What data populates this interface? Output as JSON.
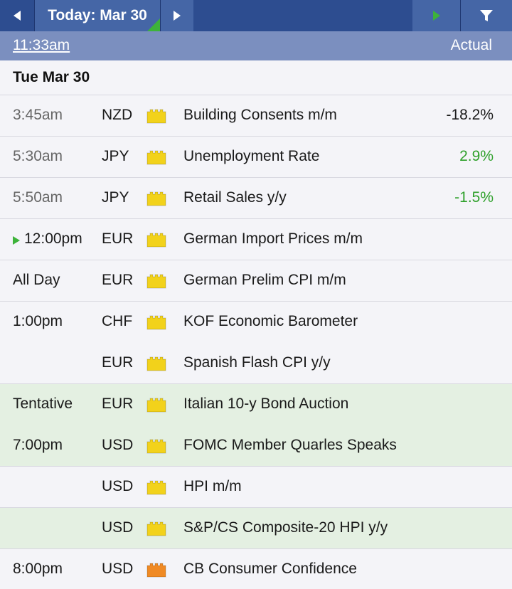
{
  "toolbar": {
    "date_label": "Today: Mar 30",
    "prev_icon": "triangle-left-icon",
    "next_icon": "triangle-right-icon",
    "play_icon": "play-icon",
    "filter_icon": "filter-icon"
  },
  "subheader": {
    "current_time": "11:33am",
    "actual_label": "Actual"
  },
  "day": {
    "label": "Tue Mar 30"
  },
  "colors": {
    "toolbar_bg": "#2d4d90",
    "toolbar_btn": "#4566a6",
    "subheader_bg": "#7b8fbf",
    "impact_low": "#f2d21b",
    "impact_medium": "#f08a24",
    "positive": "#2ea02a",
    "highlight_row": "#e4f0e2",
    "now_marker": "#3db33a"
  },
  "events": [
    {
      "time": "3:45am",
      "currency": "NZD",
      "impact": "low",
      "name": "Building Consents m/m",
      "actual": "-18.2%"
    },
    {
      "time": "5:30am",
      "currency": "JPY",
      "impact": "low",
      "name": "Unemployment Rate",
      "actual": "2.9%"
    },
    {
      "time": "5:50am",
      "currency": "JPY",
      "impact": "low",
      "name": "Retail Sales y/y",
      "actual": "-1.5%"
    },
    {
      "time": "12:00pm",
      "currency": "EUR",
      "impact": "low",
      "name": "German Import Prices m/m",
      "actual": ""
    },
    {
      "time": "All Day",
      "currency": "EUR",
      "impact": "low",
      "name": "German Prelim CPI m/m",
      "actual": ""
    },
    {
      "time": "1:00pm",
      "currency": "CHF",
      "impact": "low",
      "name": "KOF Economic Barometer",
      "actual": ""
    },
    {
      "time": "",
      "currency": "EUR",
      "impact": "low",
      "name": "Spanish Flash CPI y/y",
      "actual": ""
    },
    {
      "time": "Tentative",
      "currency": "EUR",
      "impact": "low",
      "name": "Italian 10-y Bond Auction",
      "actual": ""
    },
    {
      "time": "7:00pm",
      "currency": "USD",
      "impact": "low",
      "name": "FOMC Member Quarles Speaks",
      "actual": ""
    },
    {
      "time": "",
      "currency": "USD",
      "impact": "low",
      "name": "HPI m/m",
      "actual": ""
    },
    {
      "time": "",
      "currency": "USD",
      "impact": "low",
      "name": "S&P/CS Composite-20 HPI y/y",
      "actual": ""
    },
    {
      "time": "8:00pm",
      "currency": "USD",
      "impact": "medium",
      "name": "CB Consumer Confidence",
      "actual": ""
    }
  ]
}
